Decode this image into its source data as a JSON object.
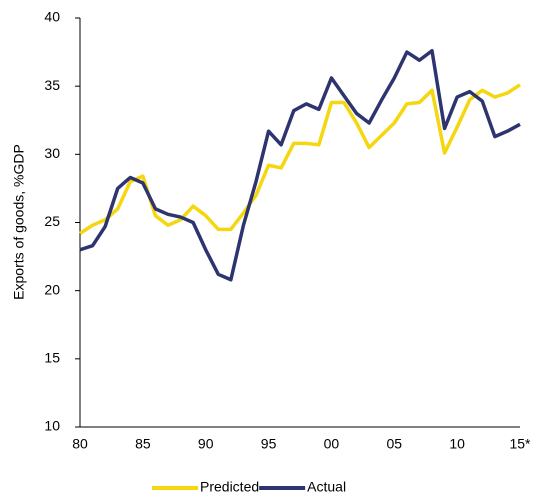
{
  "chart_data": {
    "type": "line",
    "y_label": "Exports of goods, %GDP",
    "categories": [
      "80",
      null,
      null,
      null,
      null,
      "85",
      null,
      null,
      null,
      null,
      "90",
      null,
      null,
      null,
      null,
      "95",
      null,
      null,
      null,
      null,
      "00",
      null,
      null,
      null,
      null,
      "05",
      null,
      null,
      null,
      null,
      "10",
      null,
      null,
      null,
      null,
      "15*"
    ],
    "series": [
      {
        "name": "Predicted",
        "color": "#f5d60f",
        "values": [
          24.2,
          24.8,
          25.2,
          26.0,
          28.0,
          28.4,
          25.5,
          24.8,
          25.2,
          26.2,
          25.5,
          24.5,
          24.5,
          25.7,
          27.0,
          29.2,
          29.0,
          30.8,
          30.8,
          30.7,
          33.8,
          33.8,
          32.3,
          30.5,
          31.4,
          32.3,
          33.7,
          33.8,
          34.7,
          30.1,
          32.0,
          34.0,
          34.7,
          34.2,
          34.5,
          35.1
        ]
      },
      {
        "name": "Actual",
        "color": "#2e3470",
        "values": [
          23.0,
          23.3,
          24.7,
          27.5,
          28.3,
          27.9,
          26.0,
          25.6,
          25.4,
          25.0,
          23.0,
          21.2,
          20.8,
          24.8,
          28.0,
          31.7,
          30.7,
          33.2,
          33.7,
          33.3,
          35.6,
          34.3,
          33.0,
          32.3,
          34.0,
          35.6,
          37.5,
          36.9,
          37.6,
          31.9,
          34.2,
          34.6,
          33.9,
          31.3,
          31.7,
          32.2
        ]
      }
    ],
    "ylim": [
      10,
      40
    ],
    "yticks": [
      10,
      15,
      20,
      25,
      30,
      35,
      40
    ],
    "legend": "bottom"
  }
}
